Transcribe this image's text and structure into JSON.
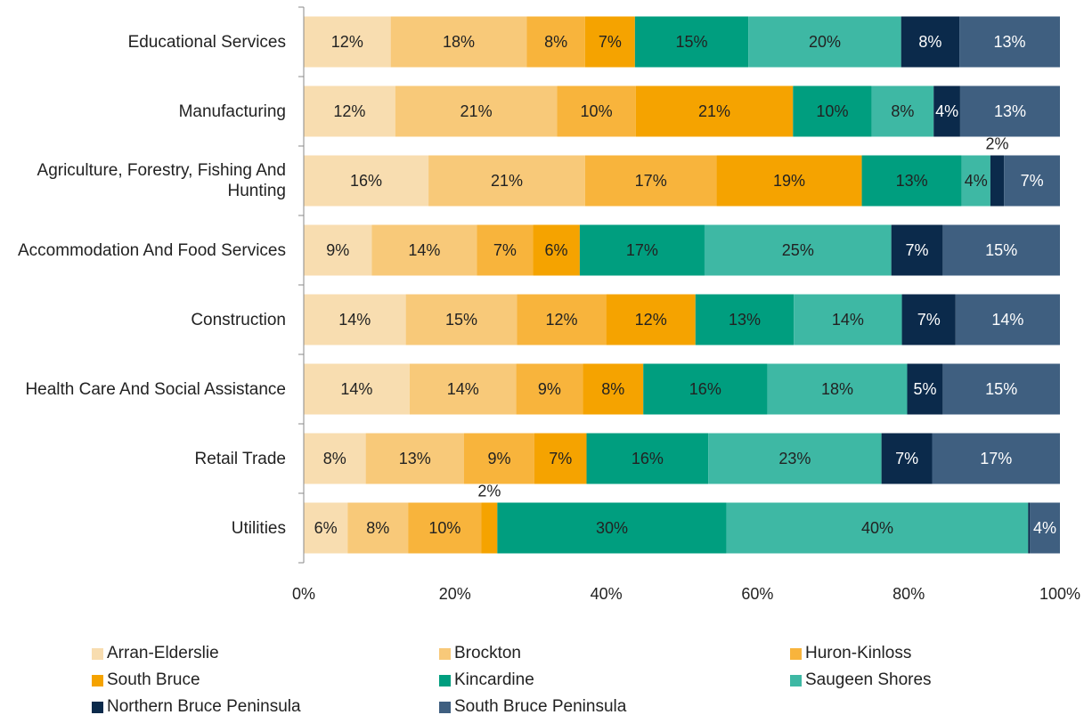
{
  "chart_data": {
    "type": "stacked_barh",
    "categories": [
      "Educational Services",
      "Manufacturing",
      "Agriculture, Forestry, Fishing And Hunting",
      "Accommodation And Food Services",
      "Construction",
      "Health Care And Social Assistance",
      "Retail Trade",
      "Utilities"
    ],
    "series": [
      {
        "name": "Arran-Elderslie",
        "color": "#f8ddb0",
        "values": [
          11.5,
          12.1,
          16.5,
          9.0,
          13.5,
          14.0,
          8.2,
          5.8
        ],
        "value_labels": [
          "12%",
          "12%",
          "16%",
          "9%",
          "14%",
          "14%",
          "8%",
          "6%"
        ]
      },
      {
        "name": "Brockton",
        "color": "#f8c979",
        "values": [
          18.0,
          21.4,
          20.7,
          13.9,
          14.7,
          14.1,
          13.0,
          8.0
        ],
        "value_labels": [
          "18%",
          "21%",
          "21%",
          "14%",
          "15%",
          "14%",
          "13%",
          "8%"
        ]
      },
      {
        "name": "Huron-Kinloss",
        "color": "#f8b43c",
        "values": [
          7.7,
          10.4,
          17.4,
          7.4,
          11.8,
          8.8,
          9.3,
          9.7
        ],
        "value_labels": [
          "8%",
          "10%",
          "17%",
          "7%",
          "12%",
          "9%",
          "9%",
          "10%"
        ]
      },
      {
        "name": "South Bruce",
        "color": "#f5a300",
        "values": [
          6.6,
          20.8,
          19.2,
          6.2,
          11.8,
          8.0,
          6.9,
          2.1
        ],
        "value_labels": [
          "7%",
          "21%",
          "19%",
          "6%",
          "12%",
          "8%",
          "7%",
          "2%"
        ]
      },
      {
        "name": "Kincardine",
        "color": "#009e7f",
        "values": [
          15.0,
          10.4,
          13.2,
          16.5,
          13.0,
          16.4,
          16.1,
          30.3
        ],
        "value_labels": [
          "15%",
          "10%",
          "13%",
          "17%",
          "13%",
          "16%",
          "16%",
          "30%"
        ]
      },
      {
        "name": "Saugeen Shores",
        "color": "#3eb8a4",
        "values": [
          20.2,
          8.2,
          3.8,
          24.7,
          14.3,
          18.5,
          22.9,
          39.9
        ],
        "value_labels": [
          "20%",
          "8%",
          "4%",
          "25%",
          "14%",
          "18%",
          "23%",
          "40%"
        ]
      },
      {
        "name": "Northern Bruce Peninsula",
        "color": "#0b2a4b",
        "values": [
          7.7,
          3.5,
          1.8,
          6.8,
          7.1,
          4.7,
          6.7,
          0.2
        ],
        "value_labels": [
          "8%",
          "4%",
          "2%",
          "7%",
          "7%",
          "5%",
          "7%",
          null
        ]
      },
      {
        "name": "South Bruce Peninsula",
        "color": "#3f5f80",
        "values": [
          13.3,
          13.2,
          7.4,
          15.5,
          13.8,
          15.5,
          16.9,
          4.0
        ],
        "value_labels": [
          "13%",
          "13%",
          "7%",
          "15%",
          "14%",
          "15%",
          "17%",
          "4%"
        ]
      }
    ],
    "xlim": [
      0,
      100
    ],
    "xticks": [
      {
        "value": 0,
        "label": "0%"
      },
      {
        "value": 20,
        "label": "20%"
      },
      {
        "value": 40,
        "label": "40%"
      },
      {
        "value": 60,
        "label": "60%"
      },
      {
        "value": 80,
        "label": "80%"
      },
      {
        "value": 100,
        "label": "100%"
      }
    ]
  }
}
